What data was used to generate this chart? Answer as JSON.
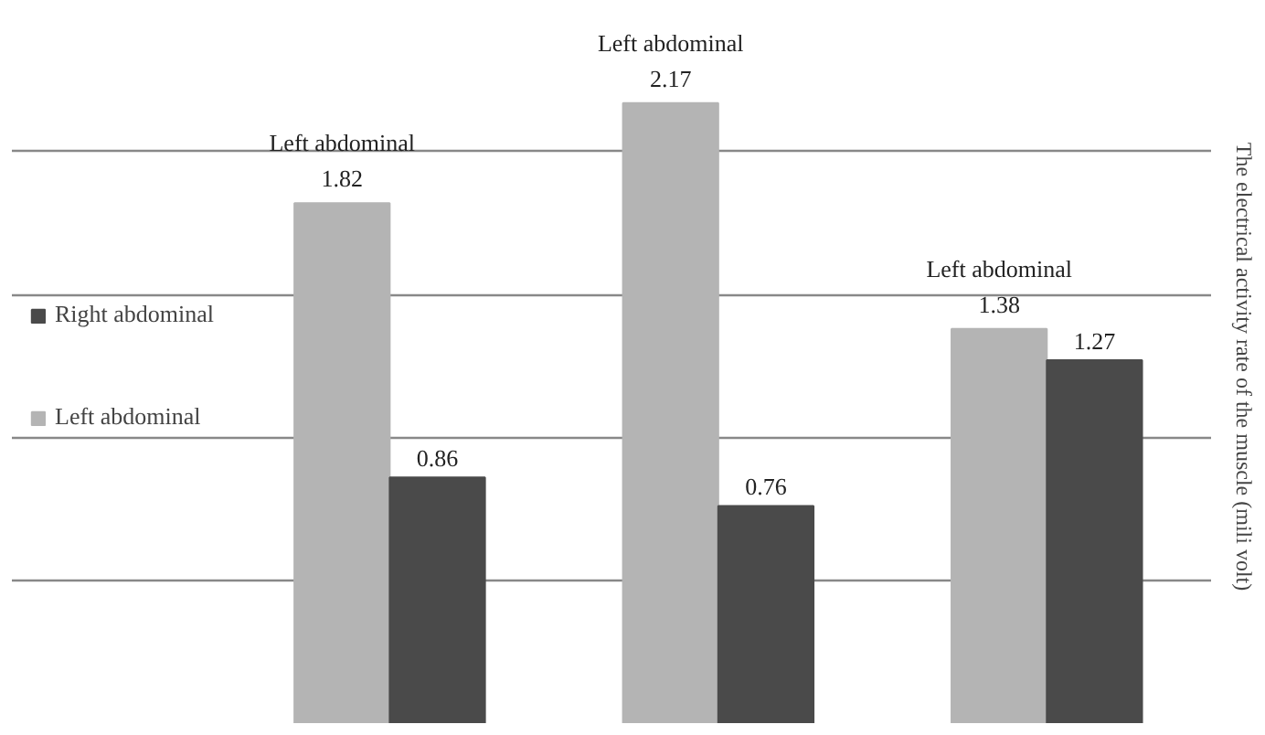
{
  "chart_data": {
    "type": "bar",
    "ylabel": "The electrical activity rate of the muscle (mili volt)",
    "categories": [
      null,
      null,
      null
    ],
    "series": [
      {
        "name": "Left abdominal",
        "color": "#b4b4b4",
        "values": [
          1.82,
          2.17,
          1.38
        ],
        "value_labels": [
          "Left abdominal\n1.82",
          "Left abdominal\n2.17",
          "Left abdominal\n1.38"
        ]
      },
      {
        "name": "Right abdominal",
        "color": "#4a4a4a",
        "values": [
          0.86,
          0.76,
          1.27
        ],
        "value_labels": [
          "0.86",
          "0.76",
          "1.27"
        ]
      }
    ],
    "grid": "y",
    "legend": "left",
    "tick_labels": false
  }
}
